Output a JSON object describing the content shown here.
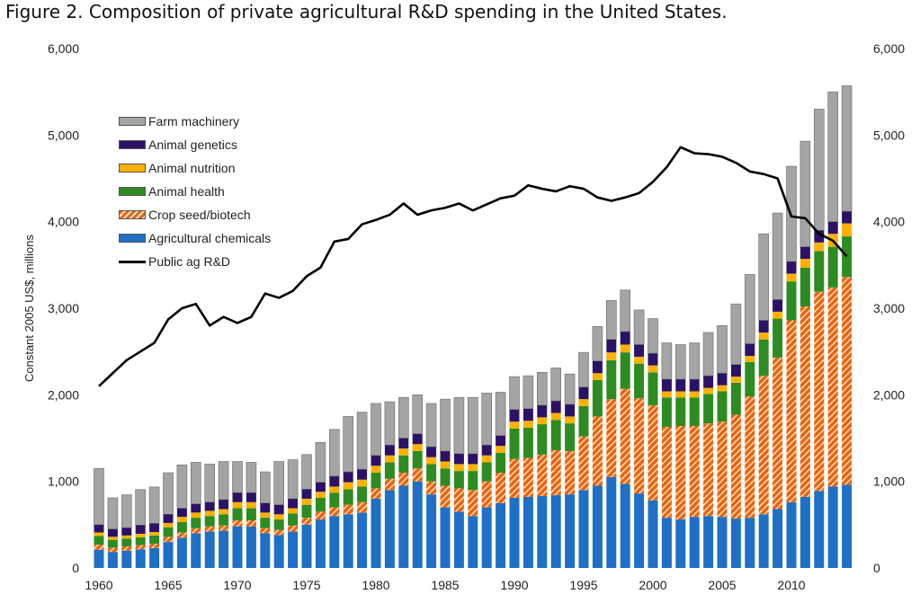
{
  "figure": {
    "title": "Figure 2. Composition of private agricultural R&D spending in the United States."
  },
  "chart_data": {
    "type": "bar",
    "stacked": true,
    "title": "Figure 2. Composition of private agricultural R&D spending in the United States.",
    "xlabel": "",
    "ylabel": "Constant 2005 US$, millions",
    "ylim": [
      0,
      6000
    ],
    "y_ticks": [
      "0",
      "1,000",
      "2,000",
      "3,000",
      "4,000",
      "5,000",
      "6,000"
    ],
    "y_tick_values": [
      0,
      1000,
      2000,
      3000,
      4000,
      5000,
      6000
    ],
    "x_ticks": [
      "1960",
      "1965",
      "1970",
      "1975",
      "1980",
      "1985",
      "1990",
      "1995",
      "2000",
      "2005",
      "2010"
    ],
    "grid": false,
    "legend_position": "top-left",
    "categories": [
      1960,
      1961,
      1962,
      1963,
      1964,
      1965,
      1966,
      1967,
      1968,
      1969,
      1970,
      1971,
      1972,
      1973,
      1974,
      1975,
      1976,
      1977,
      1978,
      1979,
      1980,
      1981,
      1982,
      1983,
      1984,
      1985,
      1986,
      1987,
      1988,
      1989,
      1990,
      1991,
      1992,
      1993,
      1994,
      1995,
      1996,
      1997,
      1998,
      1999,
      2000,
      2001,
      2002,
      2003,
      2004,
      2005,
      2006,
      2007,
      2008,
      2009,
      2010,
      2011,
      2012,
      2013,
      2014
    ],
    "series": [
      {
        "name": "Agricultural chemicals",
        "color": "#1f6fc5",
        "values": [
          210,
          185,
          200,
          215,
          230,
          300,
          350,
          400,
          420,
          430,
          480,
          480,
          400,
          380,
          420,
          500,
          560,
          600,
          620,
          640,
          800,
          900,
          950,
          1000,
          850,
          700,
          650,
          600,
          700,
          750,
          810,
          820,
          830,
          840,
          850,
          900,
          950,
          1050,
          970,
          860,
          780,
          580,
          560,
          590,
          600,
          590,
          570,
          580,
          620,
          680,
          760,
          820,
          890,
          940,
          960
        ]
      },
      {
        "name": "Crop seed/biotech",
        "color": "#e8630a",
        "pattern": "hatched",
        "values": [
          60,
          50,
          50,
          50,
          50,
          60,
          60,
          60,
          60,
          60,
          70,
          70,
          60,
          60,
          70,
          80,
          90,
          100,
          110,
          120,
          120,
          130,
          150,
          150,
          150,
          250,
          270,
          300,
          300,
          350,
          450,
          450,
          480,
          520,
          500,
          620,
          800,
          900,
          1100,
          1100,
          1100,
          1050,
          1080,
          1050,
          1070,
          1100,
          1200,
          1400,
          1600,
          1750,
          2100,
          2200,
          2300,
          2300,
          2400
        ]
      },
      {
        "name": "Animal health",
        "color": "#2e8b22",
        "values": [
          100,
          90,
          90,
          90,
          95,
          110,
          120,
          120,
          120,
          130,
          140,
          140,
          120,
          120,
          140,
          150,
          160,
          170,
          180,
          180,
          180,
          190,
          200,
          200,
          200,
          200,
          200,
          220,
          220,
          230,
          350,
          350,
          350,
          350,
          320,
          350,
          420,
          450,
          420,
          400,
          380,
          340,
          330,
          330,
          340,
          350,
          370,
          400,
          420,
          450,
          450,
          450,
          470,
          470,
          470
        ]
      },
      {
        "name": "Animal nutrition",
        "color": "#ffb000",
        "values": [
          40,
          35,
          35,
          40,
          40,
          50,
          60,
          60,
          60,
          60,
          70,
          70,
          60,
          60,
          60,
          70,
          70,
          70,
          80,
          80,
          80,
          80,
          80,
          80,
          80,
          80,
          80,
          80,
          80,
          80,
          80,
          80,
          80,
          80,
          80,
          80,
          80,
          90,
          90,
          80,
          80,
          70,
          70,
          70,
          70,
          70,
          70,
          70,
          80,
          80,
          90,
          100,
          100,
          150,
          150
        ]
      },
      {
        "name": "Animal genetics",
        "color": "#2b1266",
        "values": [
          90,
          90,
          90,
          100,
          100,
          100,
          100,
          100,
          100,
          110,
          110,
          110,
          110,
          110,
          110,
          110,
          110,
          120,
          120,
          120,
          120,
          120,
          120,
          120,
          120,
          120,
          120,
          120,
          120,
          120,
          140,
          140,
          140,
          140,
          140,
          140,
          140,
          150,
          150,
          140,
          140,
          140,
          140,
          140,
          140,
          140,
          140,
          140,
          140,
          140,
          140,
          140,
          140,
          140,
          140
        ]
      },
      {
        "name": "Farm machinery",
        "color": "#a4a4a4",
        "values": [
          650,
          360,
          380,
          410,
          420,
          480,
          500,
          480,
          440,
          440,
          360,
          350,
          360,
          500,
          450,
          400,
          460,
          540,
          640,
          660,
          600,
          500,
          470,
          450,
          500,
          600,
          650,
          650,
          600,
          500,
          380,
          380,
          380,
          380,
          350,
          400,
          400,
          450,
          480,
          400,
          400,
          420,
          400,
          420,
          500,
          550,
          700,
          800,
          1000,
          1000,
          1100,
          1220,
          1400,
          1500,
          1450
        ]
      }
    ],
    "line_series": {
      "name": "Public ag R&D",
      "color": "#000000",
      "values": [
        2100,
        2250,
        2400,
        2500,
        2600,
        2870,
        3000,
        3050,
        2800,
        2900,
        2830,
        2900,
        3170,
        3120,
        3200,
        3370,
        3470,
        3770,
        3800,
        3970,
        4020,
        4080,
        4210,
        4080,
        4130,
        4160,
        4210,
        4130,
        4200,
        4270,
        4300,
        4420,
        4380,
        4350,
        4410,
        4380,
        4280,
        4240,
        4280,
        4330,
        4460,
        4630,
        4860,
        4790,
        4780,
        4750,
        4680,
        4580,
        4550,
        4500,
        4060,
        4040,
        3860,
        3780,
        3600
      ]
    }
  },
  "legend": {
    "items": [
      {
        "label": "Farm machinery"
      },
      {
        "label": "Animal genetics"
      },
      {
        "label": "Animal nutrition"
      },
      {
        "label": "Animal health"
      },
      {
        "label": "Crop seed/biotech"
      },
      {
        "label": "Agricultural chemicals"
      },
      {
        "label": "Public ag R&D"
      }
    ]
  },
  "colors": {
    "farm_machinery": "#a4a4a4",
    "animal_genetics": "#2b1266",
    "animal_nutrition": "#ffb000",
    "animal_health": "#2e8b22",
    "crop_seed": "#e8630a",
    "ag_chemicals": "#1f6fc5",
    "public_line": "#000000"
  }
}
